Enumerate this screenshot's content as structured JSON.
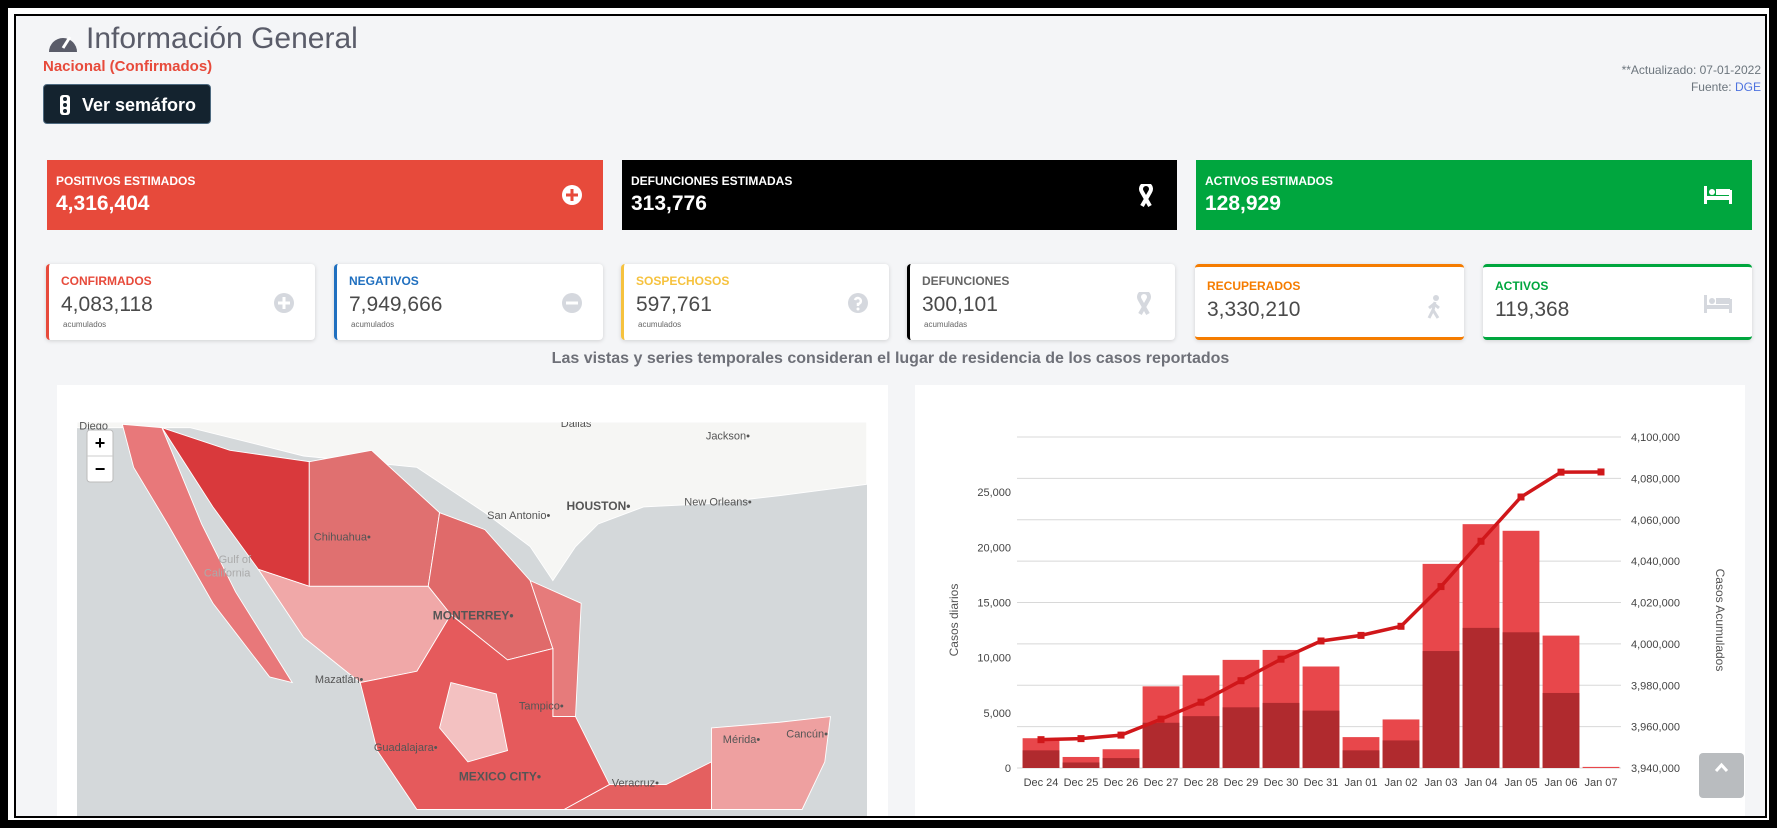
{
  "header": {
    "title": "Información General",
    "subtitle": "Nacional (Confirmados)",
    "button": "Ver semáforo",
    "updated": "**Actualizado: 07-01-2022",
    "source_label": "Fuente:",
    "source": "DGE"
  },
  "summary_cards": [
    {
      "label": "POSITIVOS ESTIMADOS",
      "value": "4,316,404"
    },
    {
      "label": "DEFUNCIONES ESTIMADAS",
      "value": "313,776"
    },
    {
      "label": "ACTIVOS ESTIMADOS",
      "value": "128,929"
    }
  ],
  "detail_cards": [
    {
      "label": "CONFIRMADOS",
      "value": "4,083,118",
      "note": "acumulados"
    },
    {
      "label": "NEGATIVOS",
      "value": "7,949,666",
      "note": "acumulados"
    },
    {
      "label": "SOSPECHOSOS",
      "value": "597,761",
      "note": "acumulados"
    },
    {
      "label": "DEFUNCIONES",
      "value": "300,101",
      "note": "acumuladas"
    },
    {
      "label": "RECUPERADOS",
      "value": "3,330,210"
    },
    {
      "label": "ACTIVOS",
      "value": "119,368"
    }
  ],
  "caption": "Las vistas y series temporales consideran el lugar de residencia de los casos reportados",
  "map": {
    "zoom_in": "+",
    "zoom_out": "−",
    "labels": [
      "Diego",
      "Dallas",
      "Jackson•",
      "HOUSTON•",
      "San Antonio•",
      "New Orleans•",
      "Chihuahua•",
      "Gulf of",
      "California",
      "MONTERREY•",
      "Mazatlán•",
      "Tampico•",
      "Guadalajara•",
      "MEXICO CITY•",
      "Veracruz•",
      "Mérida•",
      "Cancún•"
    ]
  },
  "chart_data": {
    "type": "bar",
    "categories": [
      "Dec 24",
      "Dec 25",
      "Dec 26",
      "Dec 27",
      "Dec 28",
      "Dec 29",
      "Dec 30",
      "Dec 31",
      "Jan 01",
      "Jan 02",
      "Jan 03",
      "Jan 04",
      "Jan 05",
      "Jan 06",
      "Jan 07"
    ],
    "series": [
      {
        "color": "#e8474b",
        "values": [
          2700,
          1000,
          1700,
          7400,
          8400,
          9800,
          10700,
          9200,
          2800,
          4400,
          18500,
          22100,
          21500,
          12000,
          100
        ]
      },
      {
        "color": "#b02a2e",
        "values": [
          1600,
          500,
          900,
          4100,
          4700,
          5500,
          5900,
          5200,
          1600,
          2500,
          10600,
          12700,
          12300,
          6800,
          0
        ]
      },
      {
        "type": "line",
        "axis": "y2",
        "color": "#d0171a",
        "values": [
          3953700,
          3954200,
          3955900,
          3963600,
          3971800,
          3982200,
          3992600,
          4001400,
          4004100,
          4008500,
          4027700,
          4049600,
          4071000,
          4083000,
          4083100
        ]
      }
    ],
    "y_label": "Casos diarios",
    "y2_label": "Casos Acumulados",
    "ylim": [
      0,
      30000
    ],
    "yticks": [
      0,
      {
        "value": 5000,
        "label": "5,000"
      },
      {
        "value": 10000,
        "label": "10,000"
      },
      {
        "value": 15000,
        "label": "15,000"
      },
      {
        "value": 20000,
        "label": "20,000"
      },
      {
        "value": 25000,
        "label": "25,000"
      }
    ],
    "y2lim": [
      3940000,
      4100000
    ],
    "y2ticks": [
      {
        "value": 3940000,
        "label": "3,940,000"
      },
      {
        "value": 3960000,
        "label": "3,960,000"
      },
      {
        "value": 3980000,
        "label": "3,980,000"
      },
      {
        "value": 4000000,
        "label": "4,000,000"
      },
      {
        "value": 4020000,
        "label": "4,020,000"
      },
      {
        "value": 4040000,
        "label": "4,040,000"
      },
      {
        "value": 4060000,
        "label": "4,060,000"
      },
      {
        "value": 4080000,
        "label": "4,080,000"
      },
      {
        "value": 4100000,
        "label": "4,100,000"
      }
    ],
    "grid": true
  }
}
